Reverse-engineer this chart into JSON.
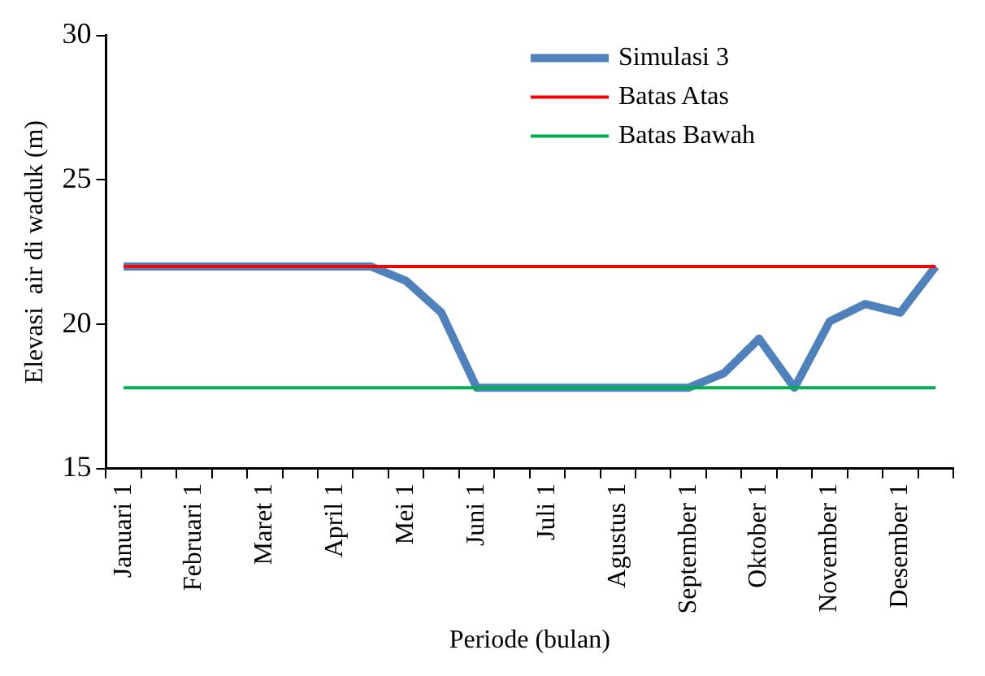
{
  "chart_data": {
    "type": "line",
    "xlabel": "Periode (bulan)",
    "ylabel": "Elevasi  air di waduk (m)",
    "categories": [
      "Januari 1",
      null,
      "Februari 1",
      null,
      "Maret 1",
      null,
      "April 1",
      null,
      "Mei 1",
      null,
      "Juni 1",
      null,
      "Juli 1",
      null,
      "Agustus 1",
      null,
      "September 1",
      null,
      "Oktober 1",
      null,
      "November 1",
      null,
      "Desember 1",
      null
    ],
    "series": [
      {
        "name": "Simulasi 3",
        "color": "#4f81bd",
        "values": [
          22,
          22,
          22,
          22,
          22,
          22,
          22,
          22,
          21.5,
          20.4,
          17.8,
          17.8,
          17.8,
          17.8,
          17.8,
          17.8,
          17.8,
          18.3,
          19.5,
          17.8,
          20.1,
          20.7,
          20.4,
          22
        ]
      },
      {
        "name": "Batas Atas",
        "color": "#ff0000",
        "values": [
          22,
          22,
          22,
          22,
          22,
          22,
          22,
          22,
          22,
          22,
          22,
          22,
          22,
          22,
          22,
          22,
          22,
          22,
          22,
          22,
          22,
          22,
          22,
          22
        ]
      },
      {
        "name": "Batas Bawah",
        "color": "#00b050",
        "values": [
          17.8,
          17.8,
          17.8,
          17.8,
          17.8,
          17.8,
          17.8,
          17.8,
          17.8,
          17.8,
          17.8,
          17.8,
          17.8,
          17.8,
          17.8,
          17.8,
          17.8,
          17.8,
          17.8,
          17.8,
          17.8,
          17.8,
          17.8,
          17.8
        ]
      }
    ],
    "ylim": [
      15,
      30
    ],
    "yticks": [
      15,
      20,
      25,
      30
    ],
    "grid": false,
    "legend": "top right",
    "marker": "none",
    "line_style": "solid"
  }
}
